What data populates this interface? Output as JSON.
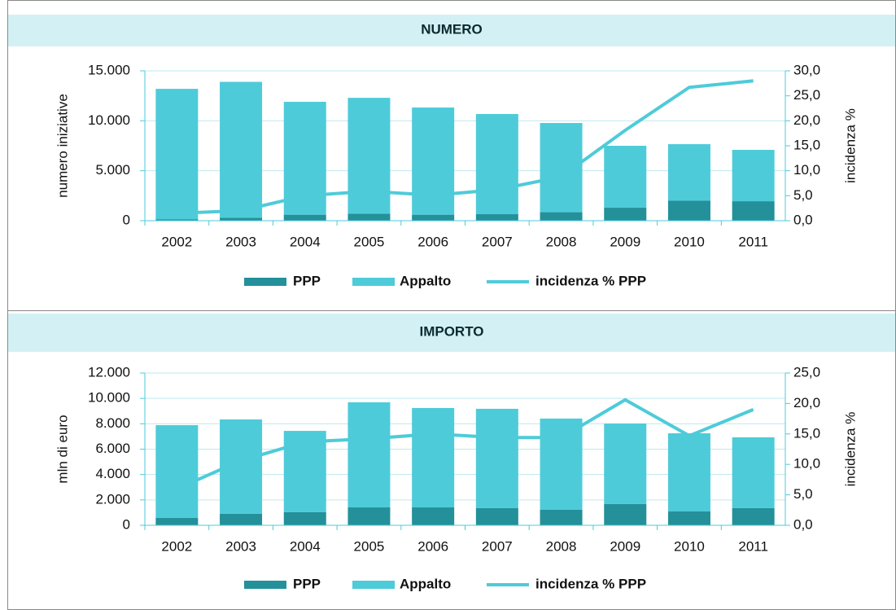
{
  "chart_data": [
    {
      "type": "bar",
      "stacked": true,
      "grid": true,
      "title": "NUMERO",
      "y_label": "numero iniziative",
      "y2_label": "incidenza %",
      "categories": [
        "2002",
        "2003",
        "2004",
        "2005",
        "2006",
        "2007",
        "2008",
        "2009",
        "2010",
        "2011"
      ],
      "series": [
        {
          "name": "PPP",
          "type": "bar",
          "color": "#23909a",
          "values": [
            150,
            300,
            600,
            700,
            600,
            650,
            850,
            1300,
            2000,
            1950
          ]
        },
        {
          "name": "Appalto",
          "type": "bar",
          "color": "#4ecbd9",
          "values": [
            13050,
            13600,
            11300,
            11600,
            10730,
            10030,
            8930,
            6200,
            5660,
            5140
          ]
        },
        {
          "name": "incidenza % PPP",
          "type": "line",
          "axis": "y2",
          "color": "#4ecbd9",
          "values": [
            1.5,
            2.0,
            5.0,
            5.9,
            5.1,
            6.2,
            8.8,
            18.1,
            26.7,
            28.0
          ]
        }
      ],
      "ylim": [
        0,
        15000
      ],
      "yticks": [
        {
          "value": 0,
          "label": "0"
        },
        {
          "value": 5000,
          "label": "5.000"
        },
        {
          "value": 10000,
          "label": "10.000"
        },
        {
          "value": 15000,
          "label": "15.000"
        }
      ],
      "y2lim": [
        0,
        30
      ],
      "y2ticks": [
        {
          "value": 0,
          "label": "0,0"
        },
        {
          "value": 5,
          "label": "5,0"
        },
        {
          "value": 10,
          "label": "10,0"
        },
        {
          "value": 15,
          "label": "15,0"
        },
        {
          "value": 20,
          "label": "20,0"
        },
        {
          "value": 25,
          "label": "25,0"
        },
        {
          "value": 30,
          "label": "30,0"
        }
      ]
    },
    {
      "type": "bar",
      "stacked": true,
      "grid": true,
      "title": "IMPORTO",
      "y_label": "mln di euro",
      "y2_label": "incidenza %",
      "categories": [
        "2002",
        "2003",
        "2004",
        "2005",
        "2006",
        "2007",
        "2008",
        "2009",
        "2010",
        "2011"
      ],
      "series": [
        {
          "name": "PPP",
          "type": "bar",
          "color": "#23909a",
          "values": [
            580,
            900,
            1030,
            1410,
            1410,
            1350,
            1220,
            1670,
            1090,
            1350
          ]
        },
        {
          "name": "Appalto",
          "type": "bar",
          "color": "#4ecbd9",
          "values": [
            7310,
            7440,
            6410,
            8280,
            7830,
            7830,
            7190,
            6350,
            6160,
            5580
          ]
        },
        {
          "name": "incidenza % PPP",
          "type": "line",
          "axis": "y2",
          "color": "#4ecbd9",
          "values": [
            6.0,
            10.6,
            13.7,
            14.2,
            15.0,
            14.4,
            14.4,
            20.6,
            14.7,
            19.0
          ]
        }
      ],
      "ylim": [
        0,
        12000
      ],
      "yticks": [
        {
          "value": 0,
          "label": "0"
        },
        {
          "value": 2000,
          "label": "2.000"
        },
        {
          "value": 4000,
          "label": "4.000"
        },
        {
          "value": 6000,
          "label": "6.000"
        },
        {
          "value": 8000,
          "label": "8.000"
        },
        {
          "value": 10000,
          "label": "10.000"
        },
        {
          "value": 12000,
          "label": "12.000"
        }
      ],
      "y2lim": [
        0,
        25
      ],
      "y2ticks": [
        {
          "value": 0,
          "label": "0,0"
        },
        {
          "value": 5,
          "label": "5,0"
        },
        {
          "value": 10,
          "label": "10,0"
        },
        {
          "value": 15,
          "label": "15,0"
        },
        {
          "value": 20,
          "label": "20,0"
        },
        {
          "value": 25,
          "label": "25,0"
        }
      ]
    }
  ]
}
